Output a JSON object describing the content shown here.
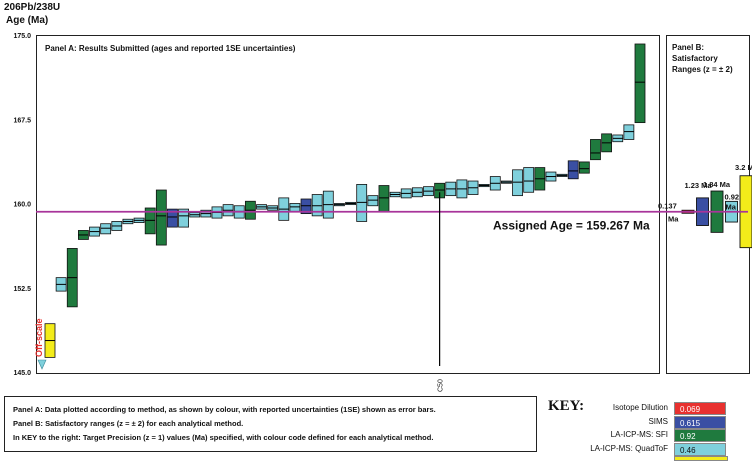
{
  "y_axis_title_1": "206Pb/238U",
  "y_axis_title_2": "Age (Ma)",
  "panel_a_title": "Panel A:  Results Submitted (ages and reported 1SE uncertainties)",
  "panel_b_title_1": "Panel B:",
  "panel_b_title_2": "Satisfactory",
  "panel_b_title_3": "Ranges (z = ± 2)",
  "assigned_age_label": "Assigned Age = 159.267 Ma",
  "c50_label": "C50",
  "off_scale_label": "Off-scale",
  "notes": [
    "Panel A: Data plotted according to method, as shown by colour, with reported uncertainties (1SE) shown as error bars.",
    "Panel B: Satisfactory ranges (z = ± 2) for each analytical method.",
    "In KEY to the right: Target Precision (z = 1) values (Ma) specified, with colour code defined for each analytical method."
  ],
  "key": {
    "title": "KEY:",
    "rows": [
      {
        "label": "Isotope Dilution",
        "value": "0.069",
        "color": "#e8312f"
      },
      {
        "label": "SIMS",
        "value": "0.615",
        "color": "#3a4fa3"
      },
      {
        "label": "LA-ICP-MS: SFI",
        "value": "0.92",
        "color": "#1f7a3e"
      },
      {
        "label": "LA-ICP-MS: QuadToF",
        "value": "0.46",
        "color": "#7fd0dc"
      }
    ],
    "last_swatch_color": "#f3ec1a"
  },
  "chart_data": {
    "type": "box",
    "title": "Panel A:  Results Submitted (ages and reported 1SE uncertainties)",
    "ylabel": "206Pb/238U Age (Ma)",
    "ylim": [
      145.0,
      175.0
    ],
    "yticks": [
      145.0,
      152.5,
      160.0,
      167.5,
      175.0
    ],
    "ytick_labels": [
      "145.0",
      "152.5",
      "160.0",
      "167.5",
      "175.0"
    ],
    "assigned_age": 159.267,
    "method_colors": {
      "ID": "#e8312f",
      "SIMS": "#3a4fa3",
      "SFI": "#1f7a3e",
      "QTOF": "#7fd0dc",
      "OTHER": "#f3ec1a"
    },
    "results": [
      {
        "m": "OTHER",
        "age": 147.8,
        "lo": 146.3,
        "hi": 149.3,
        "off": true
      },
      {
        "m": "QTOF",
        "age": 152.8,
        "lo": 152.2,
        "hi": 153.4
      },
      {
        "m": "SFI",
        "age": 153.4,
        "lo": 150.8,
        "hi": 156.0
      },
      {
        "m": "SFI",
        "age": 157.2,
        "lo": 156.8,
        "hi": 157.6
      },
      {
        "m": "QTOF",
        "age": 157.5,
        "lo": 157.1,
        "hi": 157.9
      },
      {
        "m": "QTOF",
        "age": 157.8,
        "lo": 157.3,
        "hi": 158.2
      },
      {
        "m": "QTOF",
        "age": 158.0,
        "lo": 157.6,
        "hi": 158.4
      },
      {
        "m": "QTOF",
        "age": 158.4,
        "lo": 158.2,
        "hi": 158.6
      },
      {
        "m": "QTOF",
        "age": 158.5,
        "lo": 158.3,
        "hi": 158.7
      },
      {
        "m": "SFI",
        "age": 158.5,
        "lo": 157.3,
        "hi": 159.6
      },
      {
        "m": "SFI",
        "age": 158.9,
        "lo": 156.3,
        "hi": 161.2
      },
      {
        "m": "SIMS",
        "age": 158.8,
        "lo": 157.9,
        "hi": 159.5
      },
      {
        "m": "QTOF",
        "age": 158.9,
        "lo": 157.9,
        "hi": 159.5
      },
      {
        "m": "QTOF",
        "age": 159.0,
        "lo": 158.8,
        "hi": 159.2
      },
      {
        "m": "QTOF",
        "age": 159.1,
        "lo": 158.8,
        "hi": 159.4
      },
      {
        "m": "QTOF",
        "age": 159.2,
        "lo": 158.7,
        "hi": 159.7
      },
      {
        "m": "QTOF",
        "age": 159.4,
        "lo": 158.9,
        "hi": 159.9
      },
      {
        "m": "QTOF",
        "age": 159.3,
        "lo": 158.7,
        "hi": 159.8
      },
      {
        "m": "SFI",
        "age": 159.4,
        "lo": 158.6,
        "hi": 160.2
      },
      {
        "m": "QTOF",
        "age": 159.7,
        "lo": 159.5,
        "hi": 159.9
      },
      {
        "m": "QTOF",
        "age": 159.6,
        "lo": 159.4,
        "hi": 159.8
      },
      {
        "m": "QTOF",
        "age": 159.5,
        "lo": 158.5,
        "hi": 160.5
      },
      {
        "m": "QTOF",
        "age": 159.7,
        "lo": 159.3,
        "hi": 160.0
      },
      {
        "m": "SIMS",
        "age": 159.8,
        "lo": 159.1,
        "hi": 160.4
      },
      {
        "m": "QTOF",
        "age": 159.8,
        "lo": 158.9,
        "hi": 160.8
      },
      {
        "m": "QTOF",
        "age": 159.9,
        "lo": 158.7,
        "hi": 161.1
      },
      {
        "m": "QTOF",
        "age": 159.9,
        "lo": 159.8,
        "hi": 160.0
      },
      {
        "m": "QTOF",
        "age": 160.0,
        "lo": 159.9,
        "hi": 160.1
      },
      {
        "m": "QTOF",
        "age": 160.1,
        "lo": 158.4,
        "hi": 161.7
      },
      {
        "m": "QTOF",
        "age": 160.3,
        "lo": 159.8,
        "hi": 160.7
      },
      {
        "m": "SFI",
        "age": 160.5,
        "lo": 159.3,
        "hi": 161.6
      },
      {
        "m": "QTOF",
        "age": 160.8,
        "lo": 160.6,
        "hi": 161.0
      },
      {
        "m": "QTOF",
        "age": 160.9,
        "lo": 160.5,
        "hi": 161.3
      },
      {
        "m": "QTOF",
        "age": 161.0,
        "lo": 160.6,
        "hi": 161.4
      },
      {
        "m": "QTOF",
        "age": 161.1,
        "lo": 160.7,
        "hi": 161.5
      },
      {
        "m": "SFI",
        "age": 161.2,
        "lo": 160.5,
        "hi": 161.8
      },
      {
        "m": "QTOF",
        "age": 161.3,
        "lo": 160.7,
        "hi": 161.9
      },
      {
        "m": "QTOF",
        "age": 161.3,
        "lo": 160.5,
        "hi": 162.1
      },
      {
        "m": "QTOF",
        "age": 161.4,
        "lo": 160.8,
        "hi": 162.0
      },
      {
        "m": "QTOF",
        "age": 161.6,
        "lo": 161.5,
        "hi": 161.7
      },
      {
        "m": "QTOF",
        "age": 161.8,
        "lo": 161.2,
        "hi": 162.4
      },
      {
        "m": "QTOF",
        "age": 161.9,
        "lo": 161.8,
        "hi": 162.0
      },
      {
        "m": "QTOF",
        "age": 161.9,
        "lo": 160.7,
        "hi": 163.0
      },
      {
        "m": "QTOF",
        "age": 162.0,
        "lo": 161.0,
        "hi": 163.2
      },
      {
        "m": "SFI",
        "age": 162.2,
        "lo": 161.2,
        "hi": 163.2
      },
      {
        "m": "QTOF",
        "age": 162.4,
        "lo": 162.0,
        "hi": 162.8
      },
      {
        "m": "QTOF",
        "age": 162.5,
        "lo": 162.4,
        "hi": 162.6
      },
      {
        "m": "SIMS",
        "age": 162.9,
        "lo": 162.2,
        "hi": 163.8
      },
      {
        "m": "SFI",
        "age": 163.1,
        "lo": 162.7,
        "hi": 163.7
      },
      {
        "m": "SFI",
        "age": 164.5,
        "lo": 163.9,
        "hi": 165.7
      },
      {
        "m": "SFI",
        "age": 165.4,
        "lo": 164.6,
        "hi": 166.2
      },
      {
        "m": "QTOF",
        "age": 165.8,
        "lo": 165.5,
        "hi": 166.1
      },
      {
        "m": "QTOF",
        "age": 166.4,
        "lo": 165.7,
        "hi": 167.0
      },
      {
        "m": "SFI",
        "age": 170.8,
        "lo": 167.2,
        "hi": 174.2
      }
    ],
    "panel_b_ranges": [
      {
        "m": "ID",
        "label": "0.137 Ma",
        "lo": 159.13,
        "hi": 159.4
      },
      {
        "m": "SIMS",
        "label": "1.23 Ma",
        "lo": 158.04,
        "hi": 160.5
      },
      {
        "m": "SFI",
        "label": "1.84 Ma",
        "lo": 157.43,
        "hi": 161.11
      },
      {
        "m": "QTOF",
        "label": "0.92 Ma",
        "lo": 158.35,
        "hi": 160.19
      },
      {
        "m": "OTHER",
        "label": "3.2 Ma",
        "lo": 156.07,
        "hi": 162.47
      }
    ]
  }
}
